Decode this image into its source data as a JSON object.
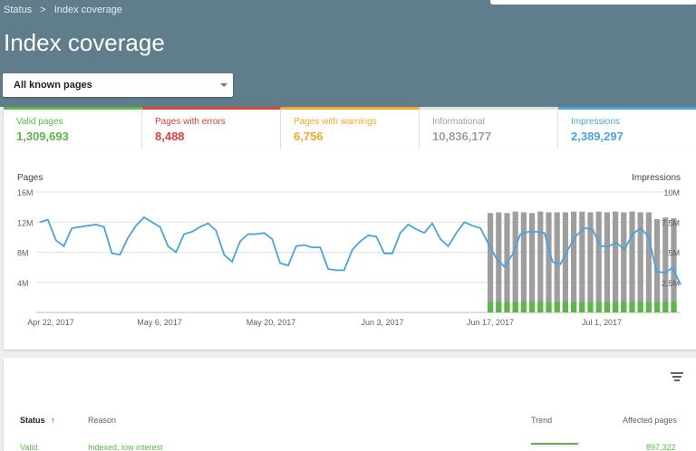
{
  "breadcrumb": {
    "parent": "Status",
    "separator": ">",
    "current": "Index coverage"
  },
  "title": "Index coverage",
  "dropdown": {
    "selected": "All known pages"
  },
  "summary": [
    {
      "label": "Valid pages",
      "value": "1,309,693"
    },
    {
      "label": "Pages with errors",
      "value": "8,488"
    },
    {
      "label": "Pages with warnings",
      "value": "6,756"
    },
    {
      "label": "Informational",
      "value": "10,836,177"
    },
    {
      "label": "Impressions",
      "value": "2,389,297"
    }
  ],
  "colors": {
    "valid": "#5bb848",
    "error": "#e0413a",
    "warning": "#f4a929",
    "info": "#9e9e9e",
    "impressions": "#4aa3df",
    "header": "#607d8b"
  },
  "chart_data": {
    "type": "line",
    "left_axis_title": "Pages",
    "right_axis_title": "Impressions",
    "left_ticks": [
      "16M",
      "12M",
      "8M",
      "4M"
    ],
    "right_ticks": [
      "10M",
      "7.5M",
      "5M",
      "2.5M"
    ],
    "x_tick_labels": [
      "Apr 22, 2017",
      "May 6, 2017",
      "May 20, 2017",
      "Jun 3, 2017",
      "Jun 17, 2017",
      "Jul 1, 2017"
    ],
    "ylim_left": [
      0,
      16000000
    ],
    "ylim_right": [
      0,
      10000000
    ],
    "series": [
      {
        "name": "Impressions",
        "values": [
          7.5,
          7.7,
          6.0,
          5.5,
          7.0,
          7.1,
          7.2,
          7.3,
          7.1,
          4.9,
          4.8,
          6.2,
          7.2,
          7.9,
          7.5,
          7.1,
          5.5,
          5.0,
          6.5,
          6.7,
          7.1,
          7.4,
          6.8,
          4.8,
          4.2,
          5.9,
          6.5,
          6.5,
          6.6,
          6.1,
          4.1,
          3.9,
          5.5,
          5.6,
          5.4,
          5.4,
          3.6,
          3.5,
          3.5,
          5.2,
          5.9,
          6.4,
          6.3,
          4.9,
          4.9,
          6.6,
          7.3,
          6.9,
          6.6,
          7.4,
          6.1,
          5.5,
          6.6,
          7.5,
          7.2,
          7.0,
          5.7,
          4.5,
          3.8,
          4.8,
          6.5,
          6.7,
          6.7,
          6.6,
          4.2,
          4.0,
          5.3,
          6.4,
          7.0,
          6.9,
          5.5,
          5.5,
          5.8,
          5.2,
          6.5,
          7.0,
          6.3,
          3.4,
          3.3,
          3.7,
          2.3
        ]
      },
      {
        "name": "Informational",
        "values": [
          13.2,
          13.3,
          13.2,
          13.4,
          13.3,
          13.2,
          13.4,
          13.3,
          13.3,
          13.3,
          13.4,
          13.4,
          13.3,
          13.4,
          13.3,
          13.4,
          13.3,
          13.4,
          13.3,
          13.3,
          12.4,
          12.6,
          12.5
        ]
      },
      {
        "name": "Valid pages",
        "values": [
          1.4,
          1.4,
          1.4,
          1.4,
          1.4,
          1.4,
          1.4,
          1.4,
          1.4,
          1.4,
          1.4,
          1.4,
          1.4,
          1.4,
          1.4,
          1.4,
          1.4,
          1.4,
          1.4,
          1.4,
          1.4,
          1.4,
          1.4
        ]
      }
    ]
  },
  "table": {
    "headers": {
      "status": "Status",
      "reason": "Reason",
      "trend": "Trend",
      "affected": "Affected pages"
    },
    "sort_icon": "arrow-up-icon",
    "filter_icon": "filter-icon",
    "row": {
      "status": "Valid",
      "reason": "Indexed, low interest",
      "affected": "897,322"
    }
  }
}
